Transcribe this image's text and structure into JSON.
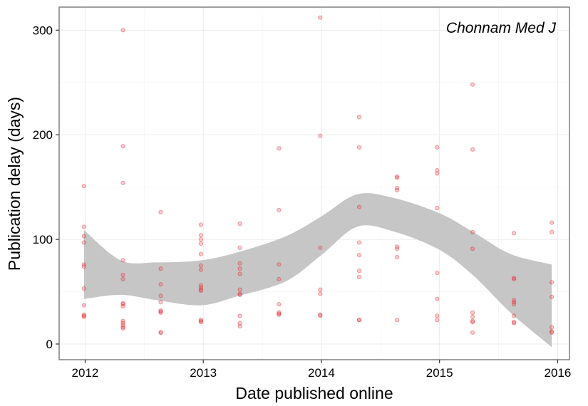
{
  "chart_data": {
    "type": "scatter",
    "title": "",
    "annotation": "Chonnam Med J",
    "xlabel": "Date published online",
    "ylabel": "Publication delay (days)",
    "x_unit": "year",
    "xlim": [
      2011.78,
      2016.1
    ],
    "ylim": [
      -15,
      322
    ],
    "x_ticks": [
      2012,
      2013,
      2014,
      2015,
      2016
    ],
    "y_ticks": [
      0,
      100,
      200,
      300
    ],
    "grid": true,
    "colors": {
      "points": "#e8282e",
      "band": "#c6c6c6",
      "grid_major": "#ebebeb",
      "grid_minor": "#f5f5f5",
      "frame": "#7f7f7f"
    },
    "series": [
      {
        "x": [
          2011.99,
          2011.99,
          2011.99,
          2011.99,
          2011.99,
          2011.99,
          2011.99,
          2011.99,
          2011.99,
          2011.99,
          2011.99,
          2012.32,
          2012.32,
          2012.32,
          2012.32,
          2012.32,
          2012.32,
          2012.32,
          2012.32,
          2012.32,
          2012.32,
          2012.32,
          2012.32,
          2012.32,
          2012.32,
          2012.64,
          2012.64,
          2012.64,
          2012.64,
          2012.64,
          2012.64,
          2012.64,
          2012.64,
          2012.64,
          2012.64,
          2012.98,
          2012.98,
          2012.98,
          2012.98,
          2012.98,
          2012.98,
          2012.98,
          2012.98,
          2012.98,
          2012.98,
          2012.98,
          2012.98,
          2012.98,
          2012.98,
          2013.31,
          2013.31,
          2013.31,
          2013.31,
          2013.31,
          2013.31,
          2013.31,
          2013.31,
          2013.31,
          2013.31,
          2013.31,
          2013.64,
          2013.64,
          2013.64,
          2013.64,
          2013.64,
          2013.64,
          2013.64,
          2013.64,
          2013.99,
          2013.99,
          2013.99,
          2013.99,
          2013.99,
          2013.99,
          2013.99,
          2014.32,
          2014.32,
          2014.32,
          2014.32,
          2014.32,
          2014.32,
          2014.32,
          2014.32,
          2014.32,
          2014.64,
          2014.64,
          2014.64,
          2014.64,
          2014.64,
          2014.64,
          2014.64,
          2014.64,
          2014.98,
          2014.98,
          2014.98,
          2014.98,
          2014.98,
          2014.98,
          2014.98,
          2014.98,
          2015.28,
          2015.28,
          2015.28,
          2015.28,
          2015.28,
          2015.28,
          2015.28,
          2015.28,
          2015.28,
          2015.63,
          2015.63,
          2015.63,
          2015.63,
          2015.63,
          2015.63,
          2015.63,
          2015.63,
          2015.63,
          2015.95,
          2015.95,
          2015.95,
          2015.95,
          2015.95,
          2015.95,
          2015.95
        ],
        "y": [
          151,
          112,
          103,
          97,
          76,
          74,
          53,
          37,
          28,
          27,
          26,
          300,
          189,
          154,
          80,
          66,
          62,
          39,
          38,
          36,
          22,
          20,
          18,
          16,
          15,
          126,
          72,
          57,
          46,
          40,
          32,
          30,
          31,
          11,
          11,
          114,
          104,
          100,
          96,
          86,
          75,
          71,
          56,
          54,
          52,
          51,
          23,
          22,
          21,
          115,
          92,
          77,
          72,
          67,
          52,
          48,
          47,
          27,
          20,
          17,
          187,
          128,
          76,
          62,
          38,
          30,
          29,
          28,
          312,
          199,
          92,
          52,
          48,
          28,
          27,
          217,
          188,
          131,
          97,
          85,
          70,
          64,
          23,
          23,
          160,
          159,
          149,
          147,
          93,
          91,
          83,
          23,
          188,
          166,
          163,
          130,
          68,
          43,
          27,
          23,
          248,
          186,
          107,
          91,
          30,
          26,
          22,
          21,
          11,
          106,
          62,
          63,
          42,
          40,
          38,
          27,
          21,
          20,
          116,
          107,
          59,
          45,
          16,
          12,
          11
        ]
      }
    ],
    "smooth": {
      "method": "loess",
      "x": [
        2011.99,
        2012.3,
        2012.6,
        2012.98,
        2013.3,
        2013.7,
        2014.0,
        2014.3,
        2014.6,
        2015.0,
        2015.3,
        2015.6,
        2015.95
      ],
      "lower": [
        43,
        47,
        42,
        37,
        46,
        60,
        85,
        112,
        108,
        90,
        64,
        30,
        -3
      ],
      "upper": [
        109,
        80,
        78,
        80,
        88,
        103,
        122,
        143,
        140,
        125,
        106,
        86,
        76
      ]
    }
  }
}
